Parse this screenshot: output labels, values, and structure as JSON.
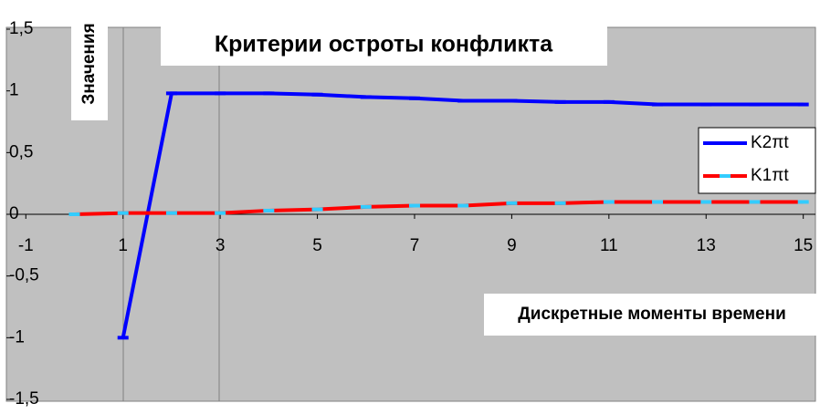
{
  "chart_data": {
    "type": "line",
    "title": "Критерии остроты конфликта",
    "y_label": "Значения",
    "x_label": "Дискретные моменты времени",
    "x": [
      0,
      1,
      2,
      3,
      4,
      5,
      6,
      7,
      8,
      9,
      10,
      11,
      12,
      13,
      14,
      15
    ],
    "series": [
      {
        "name": "K2πt",
        "color": "#0000ff",
        "marker_color": "#0000ff",
        "values": [
          null,
          -1,
          0.98,
          0.98,
          0.98,
          0.97,
          0.95,
          0.94,
          0.92,
          0.92,
          0.91,
          0.91,
          0.89,
          0.89,
          0.89,
          0.89
        ]
      },
      {
        "name": "K1πt",
        "color": "#ff0000",
        "marker_color": "#33ccff",
        "values": [
          0,
          0.01,
          0.01,
          0.01,
          0.03,
          0.04,
          0.06,
          0.07,
          0.07,
          0.09,
          0.09,
          0.1,
          0.1,
          0.1,
          0.1,
          0.1
        ]
      }
    ],
    "xlim": [
      -1.4,
      15.1
    ],
    "ylim": [
      -1.5,
      1.5
    ],
    "xticks": [
      -1,
      1,
      3,
      5,
      7,
      9,
      11,
      13,
      15
    ],
    "yticks": [
      {
        "value": -1.5,
        "label": "-1,5"
      },
      -1,
      {
        "value": -0.5,
        "label": "-0,5"
      },
      0,
      {
        "value": 0.5,
        "label": "0,5"
      },
      1,
      {
        "value": 1.5,
        "label": "1,5"
      }
    ],
    "legend": "right"
  }
}
